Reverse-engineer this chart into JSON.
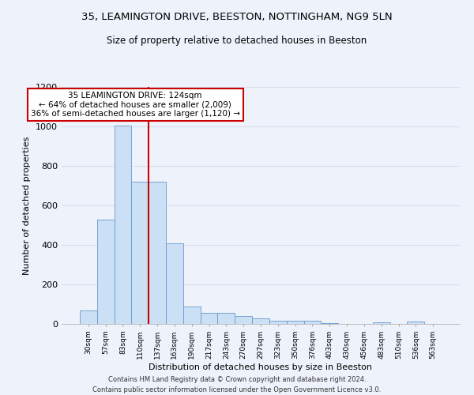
{
  "title1": "35, LEAMINGTON DRIVE, BEESTON, NOTTINGHAM, NG9 5LN",
  "title2": "Size of property relative to detached houses in Beeston",
  "xlabel": "Distribution of detached houses by size in Beeston",
  "ylabel": "Number of detached properties",
  "footnote": "Contains HM Land Registry data © Crown copyright and database right 2024.\nContains public sector information licensed under the Open Government Licence v3.0.",
  "bin_labels": [
    "30sqm",
    "57sqm",
    "83sqm",
    "110sqm",
    "137sqm",
    "163sqm",
    "190sqm",
    "217sqm",
    "243sqm",
    "270sqm",
    "297sqm",
    "323sqm",
    "350sqm",
    "376sqm",
    "403sqm",
    "430sqm",
    "456sqm",
    "483sqm",
    "510sqm",
    "536sqm",
    "563sqm"
  ],
  "bar_heights": [
    68,
    530,
    1005,
    720,
    720,
    410,
    90,
    55,
    55,
    40,
    30,
    15,
    18,
    15,
    3,
    0,
    0,
    10,
    0,
    12,
    0
  ],
  "bar_color": "#cce0f5",
  "bar_edge_color": "#6699cc",
  "red_line_x": 3.5,
  "annotation_text": "35 LEAMINGTON DRIVE: 124sqm\n← 64% of detached houses are smaller (2,009)\n36% of semi-detached houses are larger (1,120) →",
  "annotation_box_color": "#ffffff",
  "annotation_box_edge_color": "#cc0000",
  "ylim": [
    0,
    1200
  ],
  "yticks": [
    0,
    200,
    400,
    600,
    800,
    1000,
    1200
  ],
  "background_color": "#eef2fa",
  "grid_color": "#d8dff0"
}
